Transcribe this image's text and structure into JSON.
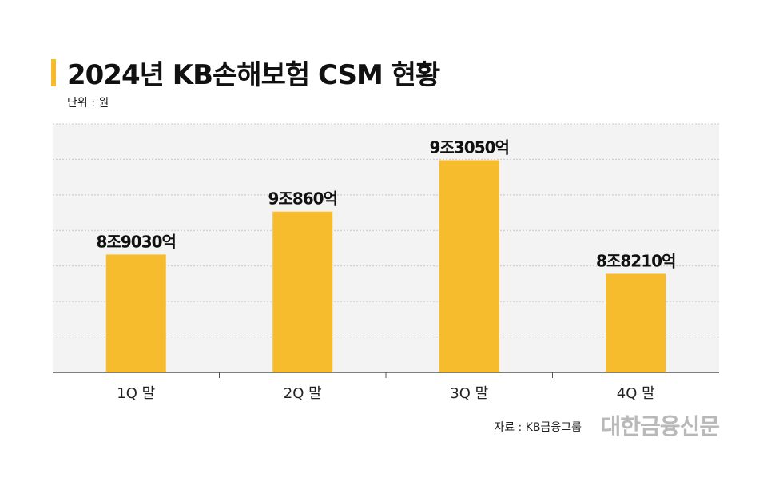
{
  "header": {
    "title": "2024년 KB손해보험 CSM 현황",
    "unit_label": "단위 : 원"
  },
  "footer": {
    "source": "자료 : KB금융그룹",
    "brand": "대한금융신문"
  },
  "colors": {
    "bar": "#f7bc2e",
    "accent": "#f7bc2e",
    "plot_background": "#f3f3f3",
    "grid": "#c8c8c8"
  },
  "chart_data": {
    "type": "bar",
    "title": "2024년 KB손해보험 CSM 현황",
    "ylabel": "단위 : 원",
    "categories": [
      "1Q 말",
      "2Q 말",
      "3Q 말",
      "4Q 말"
    ],
    "values": [
      89030,
      90860,
      93050,
      88210
    ],
    "value_labels": [
      "8조9030억",
      "9조860억",
      "9조3050억",
      "8조8210억"
    ],
    "value_unit": "억원",
    "ylim": [
      84000,
      94600
    ],
    "grid": true,
    "gridlines": 7
  }
}
